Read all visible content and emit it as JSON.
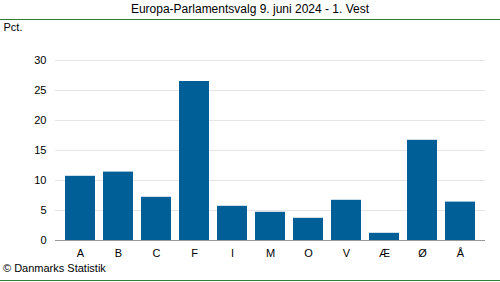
{
  "chart_data": {
    "type": "bar",
    "title": "Europa-Parlamentsvalg 9. juni 2024 - 1. Vest",
    "y_label": "Pct.",
    "caption": "© Danmarks Statistik",
    "categories": [
      "A",
      "B",
      "C",
      "F",
      "I",
      "M",
      "O",
      "V",
      "Æ",
      "Ø",
      "Å"
    ],
    "values": [
      10.7,
      11.4,
      7.2,
      26.5,
      5.7,
      4.7,
      3.7,
      6.7,
      1.2,
      16.7,
      6.4
    ],
    "color": "#005f96",
    "ylim": [
      0,
      30
    ],
    "yticks": [
      0,
      5,
      10,
      15,
      20,
      25,
      30
    ],
    "grid": true
  }
}
